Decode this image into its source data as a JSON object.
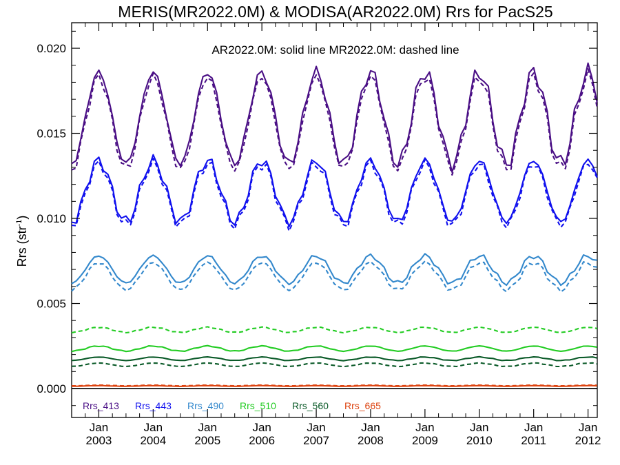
{
  "chart_data": {
    "type": "line",
    "title": "MERIS(MR2022.0M) & MODISA(AR2022.0M)  Rrs for PacS25",
    "annotation": "AR2022.0M: solid line   MR2022.0M: dashed line",
    "ylabel_main": "Rrs (str",
    "ylabel_sup": "-1",
    "ylabel_close": ")",
    "xlabel": "",
    "ylim": [
      -0.0017,
      0.0215
    ],
    "xlim": [
      2002.5,
      2012.17
    ],
    "yticks": [
      0.0,
      0.005,
      0.01,
      0.015,
      0.02
    ],
    "ytick_labels": [
      "0.000",
      "0.005",
      "0.010",
      "0.015",
      "0.020"
    ],
    "xticks": [
      {
        "value": 2003,
        "month": "Jan",
        "year": "2003"
      },
      {
        "value": 2004,
        "month": "Jan",
        "year": "2004"
      },
      {
        "value": 2005,
        "month": "Jan",
        "year": "2005"
      },
      {
        "value": 2006,
        "month": "Jan",
        "year": "2006"
      },
      {
        "value": 2007,
        "month": "Jan",
        "year": "2007"
      },
      {
        "value": 2008,
        "month": "Jan",
        "year": "2008"
      },
      {
        "value": 2009,
        "month": "Jan",
        "year": "2009"
      },
      {
        "value": 2010,
        "month": "Jan",
        "year": "2010"
      },
      {
        "value": 2011,
        "month": "Jan",
        "year": "2011"
      },
      {
        "value": 2012,
        "month": "Jan",
        "year": "2012"
      }
    ],
    "zero_line": true,
    "grid": false,
    "legend_position": "bottom-left",
    "time_step": "monthly",
    "series": [
      {
        "name": "Rrs_413",
        "color": "#4a0f85",
        "base": 0.0159,
        "amp": 0.0027,
        "phase_peak_month": 1.0,
        "solid_offset": 0.0,
        "dashed_offset": -0.0003
      },
      {
        "name": "Rrs_443",
        "color": "#1010ee",
        "base": 0.0116,
        "amp": 0.0018,
        "phase_peak_month": 1.0,
        "solid_offset": 0.0,
        "dashed_offset": -0.0002
      },
      {
        "name": "Rrs_490",
        "color": "#3388cc",
        "base": 0.007,
        "amp": 0.0008,
        "phase_peak_month": 1.0,
        "solid_offset": 0.0,
        "dashed_offset": -0.0004
      },
      {
        "name": "Rrs_510",
        "color": "#22cc22",
        "base": 0.00235,
        "amp": 0.00015,
        "phase_peak_month": 1.0,
        "solid_offset": 0.0,
        "dashed_offset": 0.0011
      },
      {
        "name": "Rrs_560",
        "color": "#0a5a28",
        "base": 0.00175,
        "amp": 0.0001,
        "phase_peak_month": 1.0,
        "solid_offset": 0.0,
        "dashed_offset": -0.00035
      },
      {
        "name": "Rrs_665",
        "color": "#dd4411",
        "base": 0.00015,
        "amp": 2e-05,
        "phase_peak_month": 1.0,
        "solid_offset": 0.0,
        "dashed_offset": 3e-05
      }
    ]
  }
}
